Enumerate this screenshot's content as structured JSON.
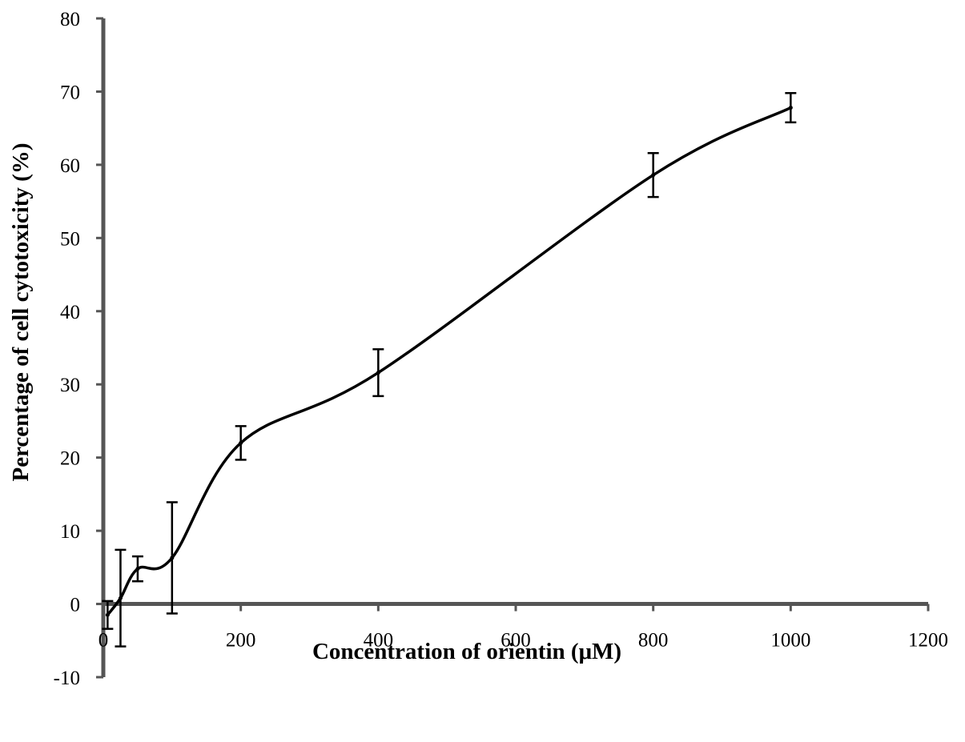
{
  "chart_data": {
    "type": "line",
    "title": "",
    "xlabel": "Concentration of orientin (μM)",
    "ylabel": "Percentage of cell cytotoxicity (%)",
    "xlim": [
      0,
      1200
    ],
    "ylim": [
      -10,
      80
    ],
    "xticks": [
      0,
      200,
      400,
      600,
      800,
      1000,
      1200
    ],
    "yticks": [
      -10,
      0,
      10,
      20,
      30,
      40,
      50,
      60,
      70,
      80
    ],
    "xtick_labels": [
      "0",
      "200",
      "400",
      "600",
      "800",
      "1000",
      "1200"
    ],
    "ytick_labels": [
      "-10",
      "0",
      "10",
      "20",
      "30",
      "40",
      "50",
      "60",
      "70",
      "80"
    ],
    "grid": false,
    "legend": "none",
    "line_color": "#000000",
    "series": [
      {
        "x": [
          6.25,
          25,
          50,
          100,
          200,
          400,
          800,
          1000
        ],
        "y": [
          -1.5,
          0.8,
          4.8,
          6.3,
          22.0,
          31.6,
          58.6,
          67.8
        ],
        "error": [
          1.9,
          6.6,
          1.7,
          7.6,
          2.3,
          3.2,
          3.0,
          2.0
        ]
      }
    ]
  }
}
